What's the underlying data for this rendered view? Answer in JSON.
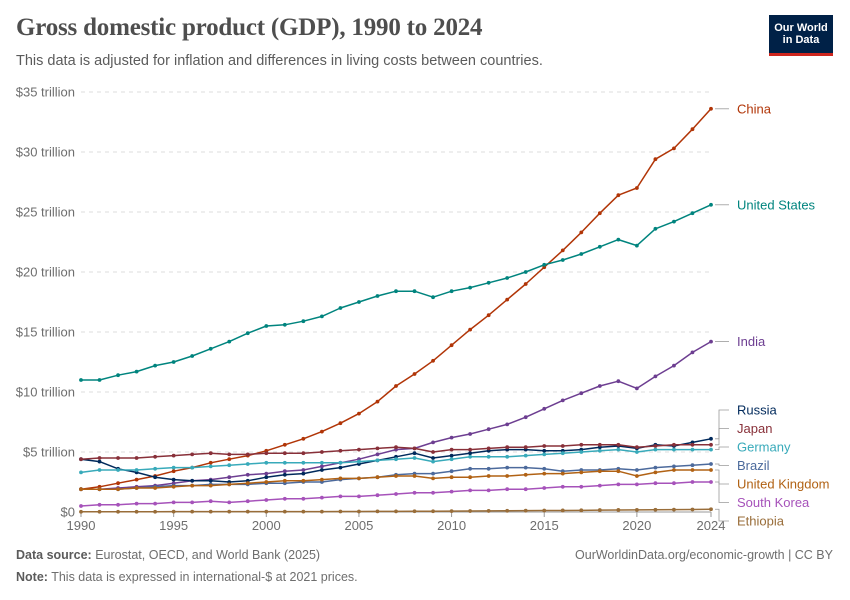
{
  "header": {
    "title": "Gross domestic product (GDP), 1990 to 2024",
    "subtitle": "This data is adjusted for inflation and differences in living costs between countries.",
    "logo_line1": "Our World",
    "logo_line2": "in Data"
  },
  "footer": {
    "source_label": "Data source:",
    "source_text": "Eurostat, OECD, and World Bank (2025)",
    "note_label": "Note:",
    "note_text": "This data is expressed in international-$ at 2021 prices.",
    "credit": "OurWorldinData.org/economic-growth | CC BY"
  },
  "chart_data": {
    "type": "line",
    "x": [
      1990,
      1991,
      1992,
      1993,
      1994,
      1995,
      1996,
      1997,
      1998,
      1999,
      2000,
      2001,
      2002,
      2003,
      2004,
      2005,
      2006,
      2007,
      2008,
      2009,
      2010,
      2011,
      2012,
      2013,
      2014,
      2015,
      2016,
      2017,
      2018,
      2019,
      2020,
      2021,
      2022,
      2023,
      2024
    ],
    "xlim": [
      1990,
      2024
    ],
    "ylim": [
      0,
      35
    ],
    "yticks": [
      0,
      5,
      10,
      15,
      20,
      25,
      30,
      35
    ],
    "ytick_labels": [
      "$0",
      "$5 trillion",
      "$10 trillion",
      "$15 trillion",
      "$20 trillion",
      "$25 trillion",
      "$30 trillion",
      "$35 trillion"
    ],
    "xticks": [
      1990,
      1995,
      2000,
      2005,
      2010,
      2015,
      2020,
      2024
    ],
    "xtick_labels": [
      "1990",
      "1995",
      "2000",
      "2005",
      "2010",
      "2015",
      "2020",
      "2024"
    ],
    "grid": "horizontal-dashed",
    "legend": "right-end-labels",
    "series": [
      {
        "name": "China",
        "color": "#b13507",
        "values": [
          1.9,
          2.1,
          2.4,
          2.7,
          3.0,
          3.4,
          3.7,
          4.1,
          4.4,
          4.7,
          5.1,
          5.6,
          6.1,
          6.7,
          7.4,
          8.2,
          9.2,
          10.5,
          11.5,
          12.6,
          13.9,
          15.2,
          16.4,
          17.7,
          19.0,
          20.4,
          21.8,
          23.3,
          24.9,
          26.4,
          27.0,
          29.4,
          30.3,
          31.9,
          33.6
        ]
      },
      {
        "name": "United States",
        "color": "#00847e",
        "values": [
          11.0,
          11.0,
          11.4,
          11.7,
          12.2,
          12.5,
          13.0,
          13.6,
          14.2,
          14.9,
          15.5,
          15.6,
          15.9,
          16.3,
          17.0,
          17.5,
          18.0,
          18.4,
          18.4,
          17.9,
          18.4,
          18.7,
          19.1,
          19.5,
          20.0,
          20.6,
          21.0,
          21.5,
          22.1,
          22.7,
          22.2,
          23.6,
          24.2,
          24.9,
          25.6
        ]
      },
      {
        "name": "India",
        "color": "#6d3e91",
        "values": [
          1.9,
          1.9,
          2.0,
          2.1,
          2.2,
          2.4,
          2.6,
          2.7,
          2.9,
          3.1,
          3.2,
          3.4,
          3.5,
          3.8,
          4.1,
          4.4,
          4.8,
          5.2,
          5.3,
          5.8,
          6.2,
          6.5,
          6.9,
          7.3,
          7.9,
          8.6,
          9.3,
          9.9,
          10.5,
          10.9,
          10.3,
          11.3,
          12.2,
          13.3,
          14.2
        ]
      },
      {
        "name": "Russia",
        "color": "#00295b",
        "values": [
          4.4,
          4.2,
          3.6,
          3.3,
          2.9,
          2.7,
          2.6,
          2.6,
          2.5,
          2.6,
          2.9,
          3.1,
          3.2,
          3.5,
          3.7,
          4.0,
          4.3,
          4.6,
          4.9,
          4.5,
          4.7,
          4.9,
          5.1,
          5.2,
          5.2,
          5.1,
          5.1,
          5.2,
          5.4,
          5.5,
          5.3,
          5.6,
          5.5,
          5.8,
          6.1
        ]
      },
      {
        "name": "Japan",
        "color": "#883039",
        "values": [
          4.4,
          4.5,
          4.5,
          4.5,
          4.6,
          4.7,
          4.8,
          4.9,
          4.8,
          4.8,
          4.9,
          4.9,
          4.9,
          5.0,
          5.1,
          5.2,
          5.3,
          5.4,
          5.3,
          5.0,
          5.2,
          5.2,
          5.3,
          5.4,
          5.4,
          5.5,
          5.5,
          5.6,
          5.6,
          5.6,
          5.4,
          5.5,
          5.6,
          5.6,
          5.6
        ]
      },
      {
        "name": "Germany",
        "color": "#38aaba",
        "values": [
          3.3,
          3.5,
          3.5,
          3.5,
          3.6,
          3.7,
          3.7,
          3.8,
          3.9,
          4.0,
          4.1,
          4.1,
          4.1,
          4.1,
          4.1,
          4.2,
          4.3,
          4.4,
          4.5,
          4.2,
          4.4,
          4.6,
          4.6,
          4.6,
          4.7,
          4.8,
          4.9,
          5.0,
          5.1,
          5.2,
          5.0,
          5.2,
          5.2,
          5.2,
          5.2
        ]
      },
      {
        "name": "Brazil",
        "color": "#4c6a9c",
        "values": [
          1.9,
          1.9,
          1.9,
          2.0,
          2.1,
          2.2,
          2.2,
          2.3,
          2.3,
          2.3,
          2.4,
          2.4,
          2.5,
          2.5,
          2.7,
          2.8,
          2.9,
          3.1,
          3.2,
          3.2,
          3.4,
          3.6,
          3.6,
          3.7,
          3.7,
          3.6,
          3.4,
          3.5,
          3.5,
          3.6,
          3.5,
          3.7,
          3.8,
          3.9,
          4.0
        ]
      },
      {
        "name": "United Kingdom",
        "color": "#b16214",
        "values": [
          1.9,
          1.9,
          1.9,
          2.0,
          2.0,
          2.1,
          2.2,
          2.2,
          2.3,
          2.4,
          2.5,
          2.6,
          2.6,
          2.7,
          2.8,
          2.8,
          2.9,
          3.0,
          3.0,
          2.8,
          2.9,
          2.9,
          3.0,
          3.0,
          3.1,
          3.2,
          3.2,
          3.3,
          3.4,
          3.4,
          3.0,
          3.3,
          3.5,
          3.5,
          3.5
        ]
      },
      {
        "name": "South Korea",
        "color": "#a652ba",
        "values": [
          0.5,
          0.6,
          0.6,
          0.7,
          0.7,
          0.8,
          0.8,
          0.9,
          0.8,
          0.9,
          1.0,
          1.1,
          1.1,
          1.2,
          1.3,
          1.3,
          1.4,
          1.5,
          1.6,
          1.6,
          1.7,
          1.8,
          1.8,
          1.9,
          1.9,
          2.0,
          2.1,
          2.1,
          2.2,
          2.3,
          2.3,
          2.4,
          2.4,
          2.5,
          2.5
        ]
      },
      {
        "name": "Ethiopia",
        "color": "#996d39",
        "values": [
          0.02,
          0.02,
          0.02,
          0.02,
          0.02,
          0.03,
          0.03,
          0.03,
          0.03,
          0.03,
          0.03,
          0.03,
          0.03,
          0.03,
          0.04,
          0.04,
          0.05,
          0.05,
          0.06,
          0.06,
          0.07,
          0.08,
          0.09,
          0.1,
          0.11,
          0.12,
          0.13,
          0.14,
          0.16,
          0.17,
          0.18,
          0.19,
          0.2,
          0.21,
          0.23
        ]
      }
    ]
  }
}
